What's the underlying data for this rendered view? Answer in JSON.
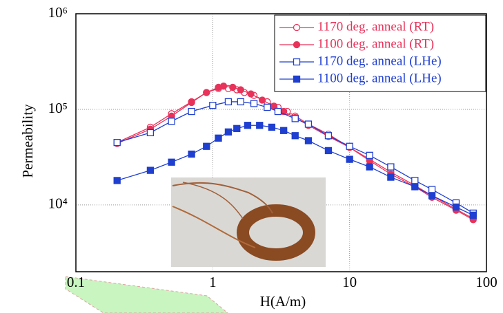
{
  "chart_data": {
    "type": "line",
    "x_label": "H(A/m)",
    "y_label": "Permeability",
    "xlog": true,
    "ylog": true,
    "grid": true,
    "legend": "upper right",
    "xlim": [
      0.1,
      100
    ],
    "xticks": [
      0.1,
      1,
      10,
      100
    ],
    "ylim": [
      2000,
      1000000
    ],
    "yticks": [
      {
        "value": 10000,
        "label": "10⁴"
      },
      {
        "value": 100000,
        "label": "10⁵"
      },
      {
        "value": 1000000,
        "label": "10⁶"
      }
    ],
    "series": [
      {
        "name": "1170 deg. anneal (RT)",
        "color": "#e8325a",
        "marker": "circle-open",
        "x": [
          0.2,
          0.35,
          0.5,
          0.7,
          0.9,
          1.1,
          1.3,
          1.5,
          1.7,
          2,
          2.5,
          3,
          3.5,
          4,
          5,
          7,
          10,
          14,
          20,
          30,
          40,
          60,
          80
        ],
        "values": [
          45000,
          65000,
          90000,
          120000,
          150000,
          165000,
          165000,
          160000,
          150000,
          140000,
          120000,
          105000,
          95000,
          85000,
          70000,
          55000,
          40000,
          30000,
          22000,
          16000,
          12500,
          9000,
          7200
        ]
      },
      {
        "name": "1100 deg. anneal (RT)",
        "color": "#e8325a",
        "marker": "circle",
        "x": [
          0.2,
          0.35,
          0.5,
          0.7,
          0.9,
          1.1,
          1.2,
          1.4,
          1.6,
          1.9,
          2.3,
          2.8,
          3.3,
          4,
          5,
          7,
          10,
          14,
          20,
          30,
          40,
          60,
          80
        ],
        "values": [
          44000,
          62000,
          85000,
          118000,
          150000,
          170000,
          175000,
          170000,
          160000,
          145000,
          125000,
          108000,
          95000,
          82000,
          68000,
          52000,
          40000,
          29000,
          21000,
          15500,
          12000,
          8800,
          7000
        ]
      },
      {
        "name": "1170 deg. anneal (LHe)",
        "color": "#1f3fd0",
        "marker": "square-open",
        "x": [
          0.2,
          0.35,
          0.5,
          0.7,
          1,
          1.3,
          1.6,
          2,
          2.5,
          3,
          4,
          5,
          7,
          10,
          14,
          20,
          30,
          40,
          60,
          80
        ],
        "values": [
          45000,
          57000,
          75000,
          95000,
          110000,
          120000,
          120000,
          115000,
          105000,
          95000,
          80000,
          70000,
          53000,
          41000,
          33000,
          25000,
          18000,
          14500,
          10500,
          8200
        ]
      },
      {
        "name": "1100 deg. anneal (LHe)",
        "color": "#1f3fd0",
        "marker": "square",
        "x": [
          0.2,
          0.35,
          0.5,
          0.7,
          0.9,
          1.1,
          1.3,
          1.5,
          1.8,
          2.2,
          2.7,
          3.3,
          4,
          5,
          7,
          10,
          14,
          20,
          30,
          40,
          60,
          80
        ],
        "values": [
          18000,
          23000,
          28000,
          34000,
          41000,
          50000,
          58000,
          63000,
          68000,
          68000,
          65000,
          60000,
          53000,
          47000,
          37000,
          30000,
          25000,
          19500,
          15500,
          12500,
          9500,
          7800
        ]
      }
    ]
  }
}
